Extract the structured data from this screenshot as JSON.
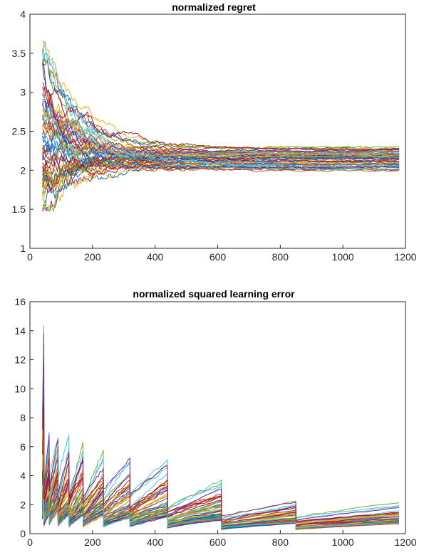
{
  "colors": [
    "#0072bd",
    "#d95319",
    "#edb120",
    "#7e2f8e",
    "#77ac30",
    "#4dbeee",
    "#a2142f"
  ],
  "chart_data": [
    {
      "type": "line",
      "title": "normalized regret",
      "xlabel": "",
      "ylabel": "",
      "xlim": [
        0,
        1200
      ],
      "ylim": [
        1,
        4
      ],
      "xticks": [
        0,
        200,
        400,
        600,
        800,
        1000,
        1200
      ],
      "yticks": [
        1,
        1.5,
        2,
        2.5,
        3,
        3.5,
        4
      ],
      "ytick_labels": [
        "1",
        "1.5",
        "2",
        "2.5",
        "3",
        "3.5",
        "4"
      ],
      "grid": false,
      "legend": "none",
      "series_count": 56,
      "x_range": [
        40,
        1180
      ],
      "trend": "lines start spread between 1.5 and 3.8 near x=40 and converge to 2.0-2.35 by x=1180",
      "start_values_range": [
        1.5,
        3.8
      ],
      "end_values_range": [
        2.0,
        2.35
      ]
    },
    {
      "type": "line",
      "title": "normalized squared learning error",
      "xlabel": "",
      "ylabel": "",
      "xlim": [
        0,
        1200
      ],
      "ylim": [
        0,
        16
      ],
      "xticks": [
        0,
        200,
        400,
        600,
        800,
        1000,
        1200
      ],
      "yticks": [
        0,
        2,
        4,
        6,
        8,
        10,
        12,
        14,
        16
      ],
      "ytick_labels": [
        "0",
        "2",
        "4",
        "6",
        "8",
        "10",
        "12",
        "14",
        "16"
      ],
      "grid": false,
      "legend": "none",
      "series_count": 56,
      "x_range": [
        40,
        1180
      ],
      "reset_x": [
        45,
        62,
        90,
        125,
        170,
        235,
        320,
        440,
        612,
        850
      ],
      "trend": "sawtooth: each series rises between reset points and drops at each reset; peaks decay from about 15 near x=45 to about 2.7 near x=850",
      "peak_values": [
        15.2,
        8.0,
        8.2,
        6.9,
        6.9,
        6.6,
        5.7,
        6.3,
        4.4,
        2.7
      ]
    }
  ]
}
